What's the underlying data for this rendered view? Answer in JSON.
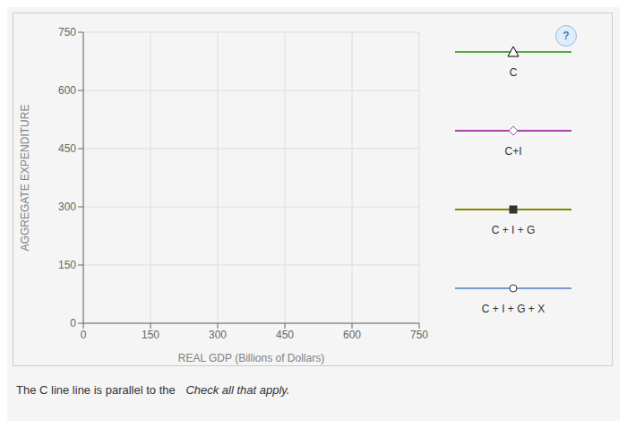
{
  "chart_data": {
    "type": "line",
    "xlabel": "REAL GDP (Billions of Dollars)",
    "ylabel": "AGGREGATE EXPENDITURE",
    "x": [],
    "series": [
      {
        "name": "C",
        "color": "#55aa44",
        "marker": "triangle",
        "values": []
      },
      {
        "name": "C+I",
        "color": "#aa44aa",
        "marker": "diamond",
        "values": []
      },
      {
        "name": "C + I + G",
        "color": "#888800",
        "marker": "square",
        "values": []
      },
      {
        "name": "C + I + G + X",
        "color": "#7799cc",
        "marker": "circle",
        "values": []
      }
    ],
    "xlim": [
      0,
      750
    ],
    "ylim": [
      0,
      750
    ],
    "xticks": [
      0,
      150,
      300,
      450,
      600,
      750
    ],
    "yticks": [
      0,
      150,
      300,
      450,
      600,
      750
    ],
    "grid": true,
    "legend": "right",
    "annotations": [
      "?",
      "The C line line is parallel to the ",
      "Check all that apply."
    ]
  }
}
